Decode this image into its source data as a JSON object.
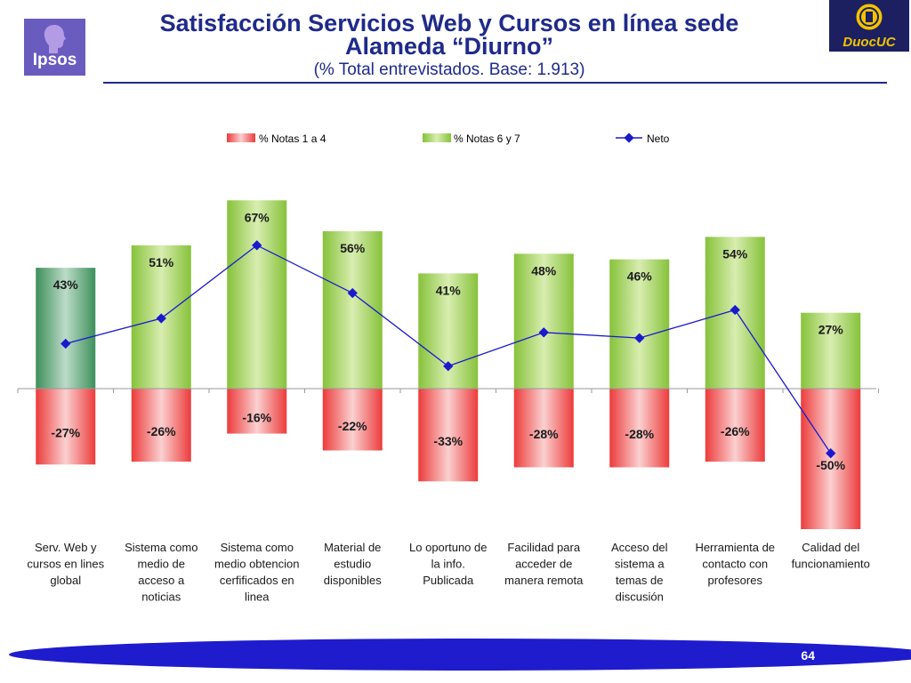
{
  "header": {
    "title_line1": "Satisfacción Servicios Web y Cursos en línea sede",
    "title_line2": "Alameda “Diurno”",
    "subtitle": "(% Total entrevistados. Base: 1.913)"
  },
  "logos": {
    "left": "Ipsos",
    "right": "DuocUC"
  },
  "colors": {
    "title": "#1f2a8a",
    "negative_bar": "#ee4646",
    "positive_bar": "#8cc63f",
    "highlight_bar": "#3d8f5a",
    "neto_line": "#1a1acc"
  },
  "chart_data": {
    "type": "bar",
    "legend": [
      "% Notas 1 a 4",
      "% Notas 6 y 7",
      "Neto"
    ],
    "legend_position": "top",
    "categories": [
      [
        "Serv. Web y",
        "cursos en lines",
        "global"
      ],
      [
        "Sistema como",
        "medio de",
        "acceso a",
        "noticias"
      ],
      [
        "Sistema como",
        "medio obtencion",
        "cerfificados en",
        "linea"
      ],
      [
        "Material de",
        "estudio",
        "disponibles"
      ],
      [
        "Lo oportuno de",
        "la info.",
        "Publicada"
      ],
      [
        "Facilidad para",
        "acceder de",
        "manera remota"
      ],
      [
        "Acceso del",
        "sistema a",
        "temas de",
        "discusión"
      ],
      [
        "Herramienta de",
        "contacto con",
        "profesores"
      ],
      [
        "Calidad del",
        "funcionamiento"
      ]
    ],
    "series": [
      {
        "name": "% Notas 1 a 4",
        "values": [
          -27,
          -26,
          -16,
          -22,
          -33,
          -28,
          -28,
          -26,
          -50
        ],
        "labels": [
          "-27%",
          "-26%",
          "-16%",
          "-22%",
          "-33%",
          "-28%",
          "-28%",
          "-26%",
          "-50%"
        ]
      },
      {
        "name": "% Notas 6 y 7",
        "values": [
          43,
          51,
          67,
          56,
          41,
          48,
          46,
          54,
          27
        ],
        "labels": [
          "43%",
          "51%",
          "67%",
          "56%",
          "41%",
          "48%",
          "46%",
          "54%",
          "27%"
        ]
      },
      {
        "name": "Neto",
        "values": [
          16,
          25,
          51,
          34,
          8,
          20,
          18,
          28,
          -23
        ]
      }
    ],
    "highlight_index": 0,
    "ylim": [
      -50,
      67
    ]
  },
  "footer": {
    "page_number": "64"
  }
}
